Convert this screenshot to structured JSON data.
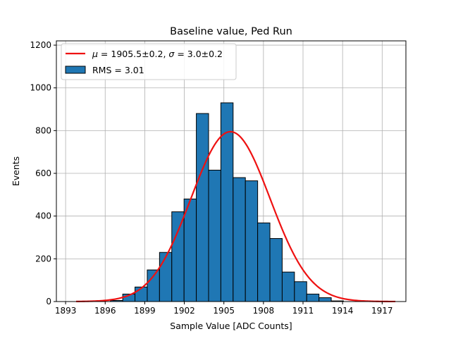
{
  "chart_data": {
    "type": "bar",
    "title": "Baseline value, Ped Run",
    "xlabel": "Sample Value [ADC Counts]",
    "ylabel": "Events",
    "xlim": [
      1892.3,
      1918.8
    ],
    "ylim": [
      0,
      1220
    ],
    "x_ticks": [
      1893,
      1896,
      1899,
      1902,
      1905,
      1908,
      1911,
      1914,
      1917
    ],
    "y_ticks": [
      0,
      200,
      400,
      600,
      800,
      1000,
      1200
    ],
    "grid": true,
    "legend_position": "upper-left",
    "bin_width": 0.93,
    "bins": [
      {
        "x0": 1896.4,
        "value": 5
      },
      {
        "x0": 1897.33,
        "value": 35
      },
      {
        "x0": 1898.26,
        "value": 68
      },
      {
        "x0": 1899.19,
        "value": 148
      },
      {
        "x0": 1900.12,
        "value": 230
      },
      {
        "x0": 1901.05,
        "value": 420
      },
      {
        "x0": 1901.98,
        "value": 480
      },
      {
        "x0": 1902.91,
        "value": 880
      },
      {
        "x0": 1903.84,
        "value": 615
      },
      {
        "x0": 1904.77,
        "value": 930
      },
      {
        "x0": 1905.7,
        "value": 580
      },
      {
        "x0": 1906.63,
        "value": 565
      },
      {
        "x0": 1907.56,
        "value": 368
      },
      {
        "x0": 1908.49,
        "value": 295
      },
      {
        "x0": 1909.42,
        "value": 138
      },
      {
        "x0": 1910.35,
        "value": 93
      },
      {
        "x0": 1911.28,
        "value": 35
      },
      {
        "x0": 1912.21,
        "value": 18
      },
      {
        "x0": 1913.14,
        "value": 3
      }
    ],
    "fit": {
      "mu": 1905.5,
      "sigma": 3.0,
      "amplitude": 795,
      "x_range": [
        1893.8,
        1918.0
      ]
    },
    "series": [
      {
        "name": "RMS = 3.01",
        "kind": "histogram",
        "color": "#1f77b4"
      },
      {
        "name": "$\\mu = 1905.5 \\pm 0.2$, $\\sigma = 3.0 \\pm 0.2$",
        "kind": "fit-line",
        "color": "#ee1111"
      }
    ]
  },
  "legend": {
    "fit_mu_symbol": "μ",
    "fit_mu_text": " = 1905.5±0.2, ",
    "fit_sigma_symbol": "σ",
    "fit_sigma_text": " = 3.0±0.2",
    "hist_label": "RMS = 3.01"
  }
}
